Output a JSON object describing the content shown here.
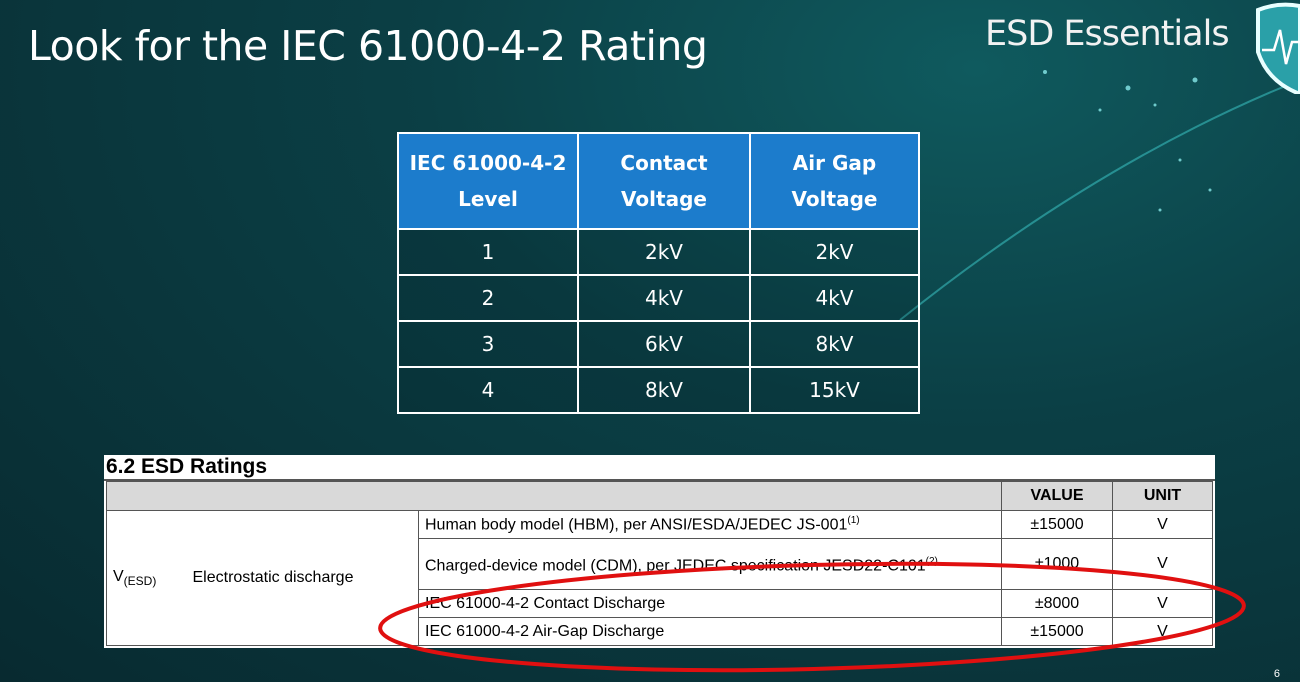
{
  "slide": {
    "title": "Look for the IEC 61000-4-2 Rating",
    "brand": "ESD Essentials",
    "page_number": "6"
  },
  "level_table": {
    "headers": [
      [
        "IEC 61000-4-2",
        "Level"
      ],
      [
        "Contact",
        "Voltage"
      ],
      [
        "Air Gap",
        "Voltage"
      ]
    ],
    "rows": [
      [
        "1",
        "2kV",
        "2kV"
      ],
      [
        "2",
        "4kV",
        "4kV"
      ],
      [
        "3",
        "6kV",
        "8kV"
      ],
      [
        "4",
        "8kV",
        "15kV"
      ]
    ]
  },
  "esd_ratings": {
    "heading": "6.2   ESD Ratings",
    "headers": {
      "value": "VALUE",
      "unit": "UNIT"
    },
    "symbol": "V",
    "symbol_sub": "(ESD)",
    "parameter": "Electrostatic discharge",
    "rows": [
      {
        "condition": "Human body model (HBM), per ANSI/ESDA/JEDEC JS-001",
        "note": "(1)",
        "value": "±15000",
        "unit": "V"
      },
      {
        "condition": "Charged-device model (CDM), per JEDEC specification JESD22-C101",
        "note": "(2)",
        "value": "±1000",
        "unit": "V"
      },
      {
        "condition": "IEC 61000-4-2 Contact Discharge",
        "note": "",
        "value": "±8000",
        "unit": "V"
      },
      {
        "condition": "IEC 61000-4-2 Air-Gap Discharge",
        "note": "",
        "value": "±15000",
        "unit": "V"
      }
    ]
  },
  "colors": {
    "header_blue": "#1c7ccc",
    "highlight_red": "#e01010",
    "background": "#0b3f45"
  }
}
